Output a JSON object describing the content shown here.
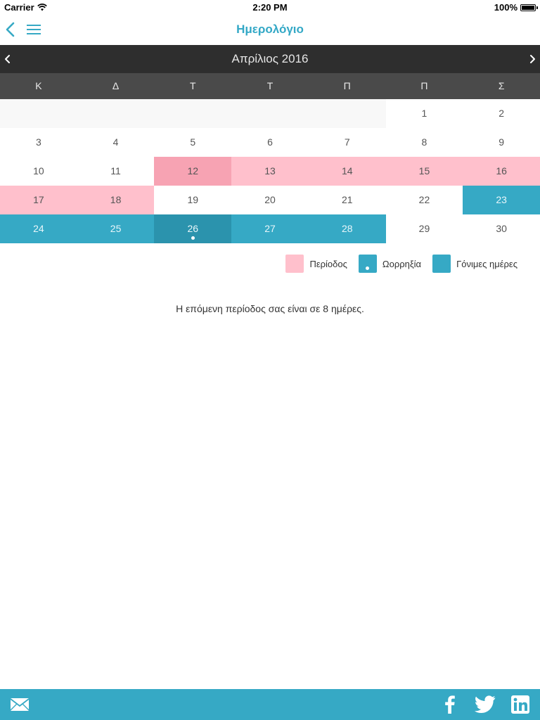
{
  "status_bar": {
    "carrier": "Carrier",
    "time": "2:20 PM",
    "battery": "100%"
  },
  "nav": {
    "title": "Ημερολόγιο",
    "back_icon": "chevron-left-icon",
    "menu_icon": "hamburger-menu-icon"
  },
  "calendar": {
    "month_title": "Απρίλιος 2016",
    "weekdays": [
      "Κ",
      "Δ",
      "Τ",
      "Τ",
      "Π",
      "Π",
      "Σ"
    ],
    "leading_empty_days": 5,
    "days": [
      {
        "label": "1",
        "state": "normal"
      },
      {
        "label": "2",
        "state": "normal"
      },
      {
        "label": "3",
        "state": "normal"
      },
      {
        "label": "4",
        "state": "normal"
      },
      {
        "label": "5",
        "state": "normal"
      },
      {
        "label": "6",
        "state": "normal"
      },
      {
        "label": "7",
        "state": "normal"
      },
      {
        "label": "8",
        "state": "normal"
      },
      {
        "label": "9",
        "state": "normal"
      },
      {
        "label": "10",
        "state": "normal"
      },
      {
        "label": "11",
        "state": "normal"
      },
      {
        "label": "12",
        "state": "period-today"
      },
      {
        "label": "13",
        "state": "period"
      },
      {
        "label": "14",
        "state": "period"
      },
      {
        "label": "15",
        "state": "period"
      },
      {
        "label": "16",
        "state": "period"
      },
      {
        "label": "17",
        "state": "period"
      },
      {
        "label": "18",
        "state": "period"
      },
      {
        "label": "19",
        "state": "normal"
      },
      {
        "label": "20",
        "state": "normal"
      },
      {
        "label": "21",
        "state": "normal"
      },
      {
        "label": "22",
        "state": "normal"
      },
      {
        "label": "23",
        "state": "fertile"
      },
      {
        "label": "24",
        "state": "fertile"
      },
      {
        "label": "25",
        "state": "fertile"
      },
      {
        "label": "26",
        "state": "fertile-selected",
        "ovulation": true
      },
      {
        "label": "27",
        "state": "fertile"
      },
      {
        "label": "28",
        "state": "fertile"
      },
      {
        "label": "29",
        "state": "normal"
      },
      {
        "label": "30",
        "state": "normal"
      }
    ]
  },
  "legend": {
    "period_label": "Περίοδος",
    "ovulation_label": "Ωορρηξία",
    "fertile_label": "Γόνιμες ημέρες"
  },
  "info_text": "Η επόμενη περίοδος σας είναι σε 8 ημέρες.",
  "colors": {
    "accent": "#36a9c5",
    "period": "#ffc0cc",
    "period_today": "#f7a3b3",
    "fertile_selected": "#2b93ad",
    "month_bar": "#2e2e2e",
    "weekday_bar": "#4a4a4a"
  },
  "bottom_bar": {
    "icons": [
      "mail-icon",
      "facebook-icon",
      "twitter-icon",
      "linkedin-icon"
    ]
  }
}
